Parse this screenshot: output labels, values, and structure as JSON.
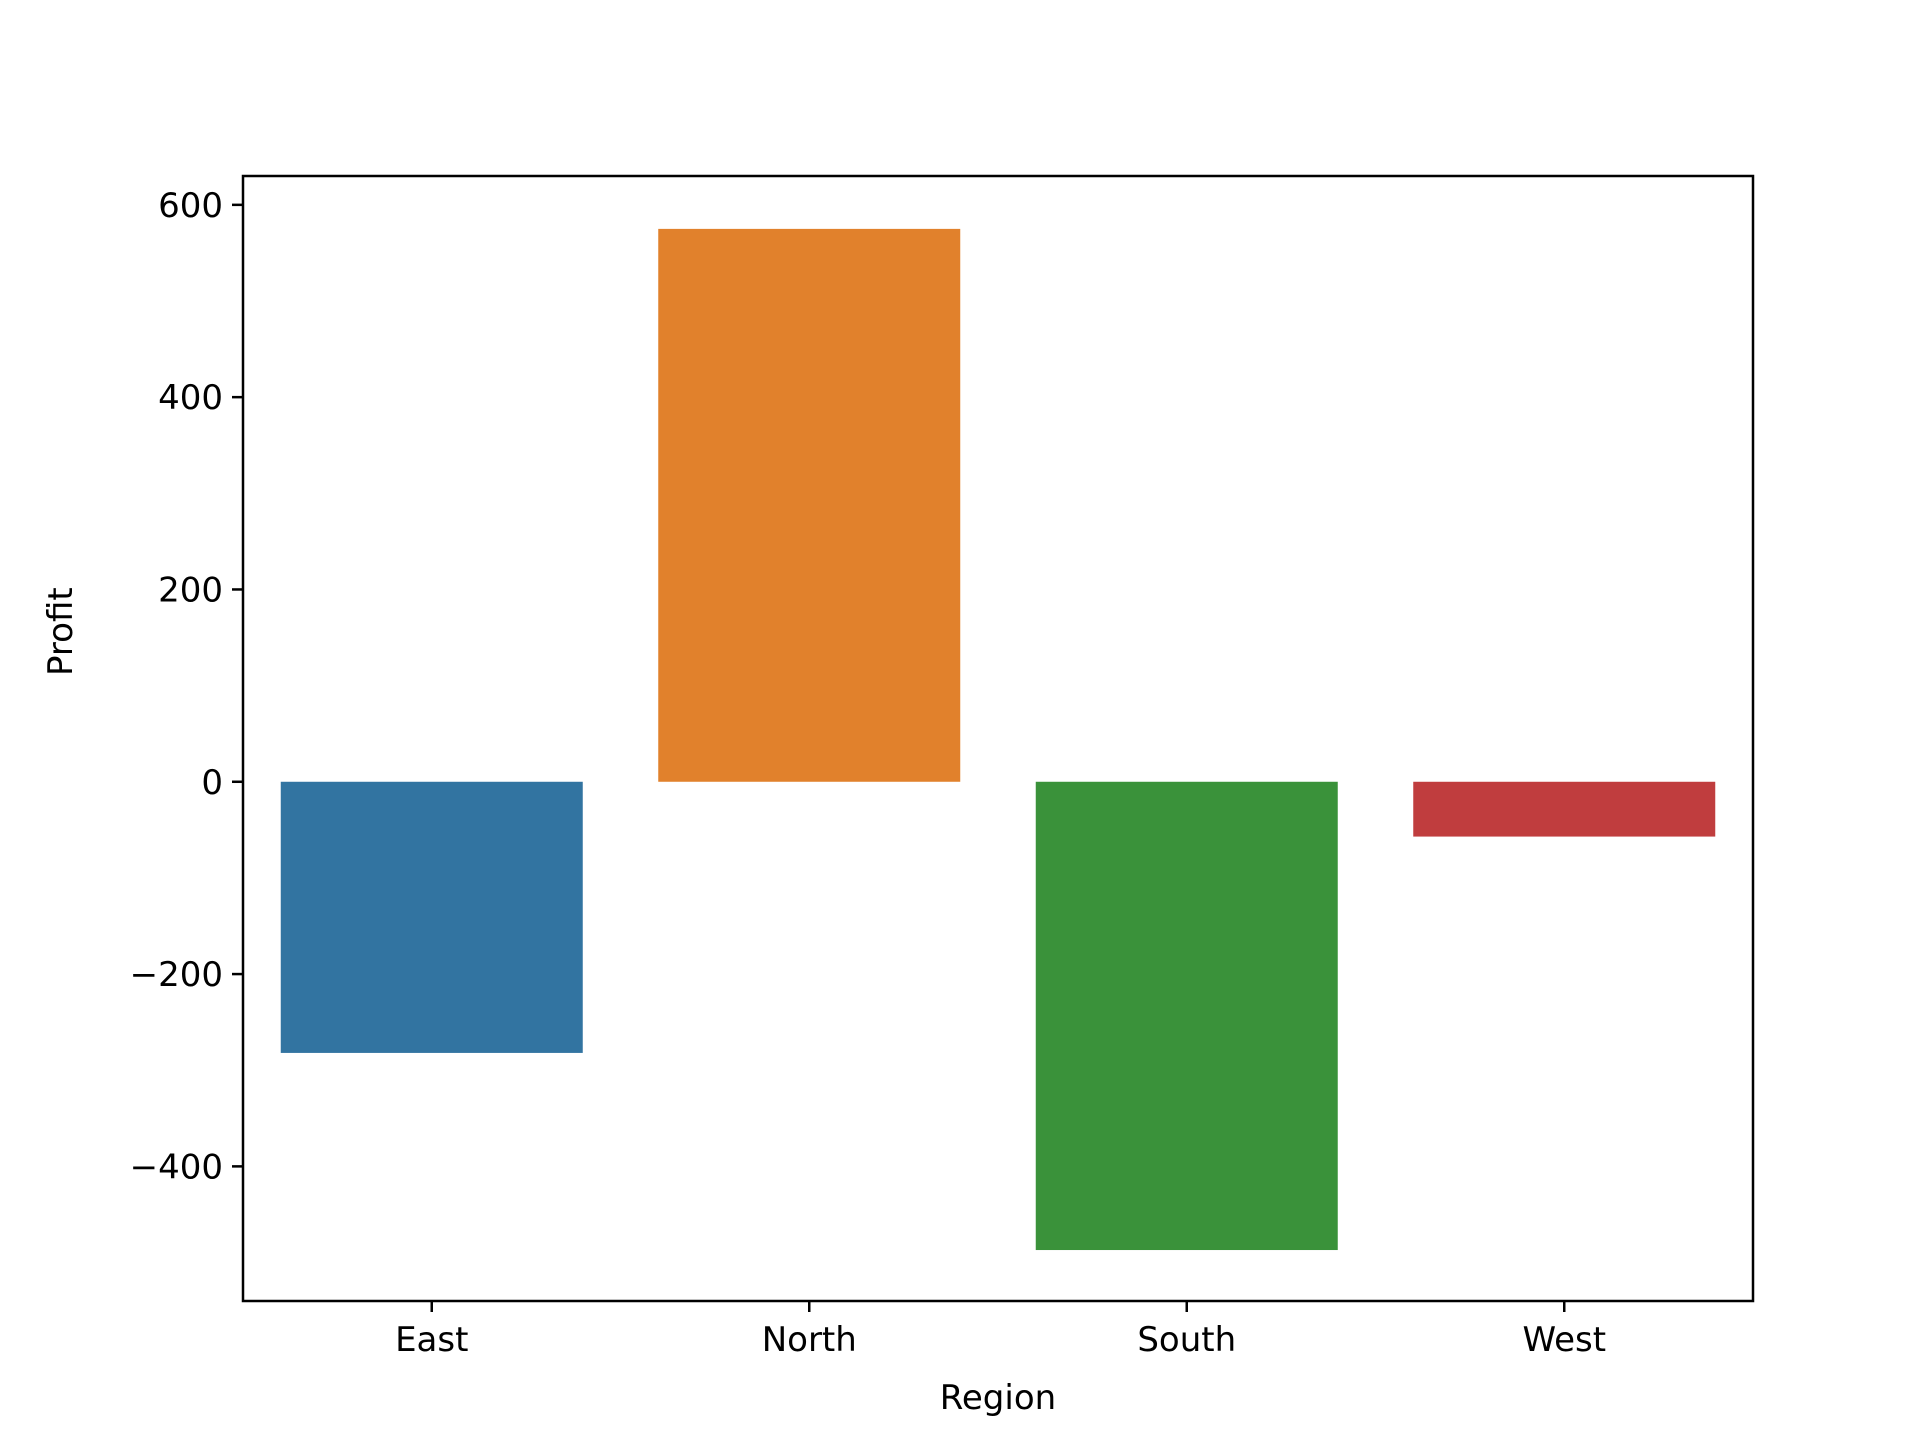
{
  "chart_data": {
    "type": "bar",
    "title": "",
    "xlabel": "Region",
    "ylabel": "Profit",
    "categories": [
      "East",
      "North",
      "South",
      "West"
    ],
    "values": [
      -282,
      575,
      -487,
      -57
    ],
    "colors": [
      "#3274a1",
      "#e1812c",
      "#3a923a",
      "#c03d3e"
    ],
    "ylim": [
      -540,
      630
    ],
    "yticks": [
      -400,
      -200,
      0,
      200,
      400,
      600
    ],
    "ytick_labels": [
      "−400",
      "−200",
      "0",
      "200",
      "400",
      "600"
    ],
    "grid": false,
    "legend": "none"
  }
}
